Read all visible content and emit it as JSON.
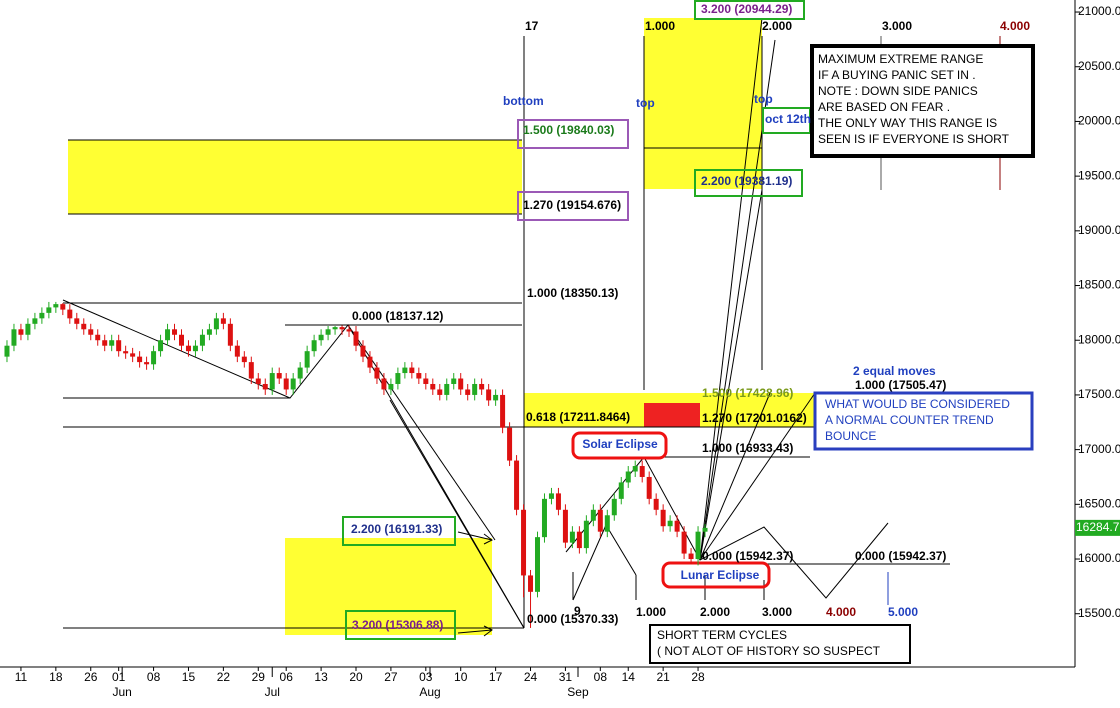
{
  "chart_data": {
    "type": "candlestick",
    "x": [
      0,
      1,
      2,
      3,
      4,
      5,
      6,
      7,
      8,
      9,
      10,
      11,
      12,
      13,
      14,
      15,
      16,
      17,
      18,
      19,
      20,
      21,
      22,
      23,
      24,
      25,
      26,
      27,
      28,
      29,
      30,
      31,
      32,
      33,
      34,
      35,
      36,
      37,
      38,
      39,
      40,
      41,
      42,
      43,
      44,
      45,
      46,
      47,
      48,
      49,
      50,
      51,
      52,
      53,
      54,
      55,
      56,
      57,
      58,
      59,
      60,
      61,
      62,
      63,
      64,
      65,
      66,
      67,
      68,
      69,
      70,
      71,
      72,
      73,
      74,
      75,
      76,
      77,
      78,
      79,
      80,
      81,
      82,
      83,
      84,
      85,
      86,
      87,
      88,
      89,
      90,
      91,
      92,
      93,
      94,
      95,
      96,
      97,
      98,
      99,
      100
    ],
    "open": [
      17850,
      17950,
      18100,
      18050,
      18150,
      18200,
      18250,
      18300,
      18330,
      18280,
      18200,
      18150,
      18100,
      18050,
      18000,
      17950,
      18000,
      17900,
      17880,
      17850,
      17800,
      17780,
      17900,
      18000,
      18100,
      18050,
      17950,
      17900,
      17950,
      18050,
      18100,
      18200,
      18150,
      17950,
      17850,
      17800,
      17650,
      17600,
      17550,
      17700,
      17650,
      17550,
      17650,
      17750,
      17900,
      18000,
      18050,
      18100,
      18120,
      18100,
      18080,
      17950,
      17850,
      17750,
      17650,
      17550,
      17600,
      17700,
      17750,
      17700,
      17650,
      17600,
      17550,
      17500,
      17600,
      17650,
      17550,
      17500,
      17600,
      17550,
      17450,
      17500,
      17200,
      16900,
      16450,
      15850,
      15700,
      16200,
      16550,
      16600,
      16450,
      16150,
      16250,
      16100,
      16350,
      16450,
      16250,
      16400,
      16550,
      16700,
      16800,
      16850,
      16750,
      16550,
      16450,
      16300,
      16350,
      16250,
      16050,
      16000,
      16250
    ],
    "high": [
      18000,
      18150,
      18150,
      18200,
      18250,
      18300,
      18350,
      18350,
      18340,
      18330,
      18250,
      18200,
      18150,
      18100,
      18050,
      18050,
      18050,
      17950,
      17930,
      17900,
      17850,
      17950,
      18050,
      18150,
      18150,
      18100,
      18000,
      18000,
      18100,
      18150,
      18250,
      18250,
      18200,
      18000,
      17900,
      17850,
      17700,
      17650,
      17750,
      17750,
      17700,
      17700,
      17800,
      17950,
      18050,
      18100,
      18130,
      18130,
      18135,
      18137,
      18130,
      18000,
      17900,
      17800,
      17700,
      17650,
      17750,
      17800,
      17800,
      17750,
      17700,
      17650,
      17600,
      17650,
      17700,
      17700,
      17600,
      17650,
      17650,
      17600,
      17550,
      17550,
      17250,
      16950,
      16500,
      15900,
      16250,
      16600,
      16650,
      16650,
      16500,
      16300,
      16300,
      16400,
      16500,
      16500,
      16450,
      16600,
      16750,
      16850,
      16900,
      16900,
      16800,
      16600,
      16500,
      16400,
      16400,
      16300,
      16100,
      16300,
      16320
    ],
    "low": [
      17800,
      17900,
      18000,
      18000,
      18100,
      18150,
      18200,
      18250,
      18230,
      18150,
      18100,
      18050,
      18000,
      17950,
      17900,
      17900,
      17850,
      17830,
      17800,
      17750,
      17730,
      17730,
      17850,
      17950,
      18000,
      17900,
      17850,
      17850,
      17900,
      18000,
      18050,
      18100,
      17900,
      17800,
      17750,
      17600,
      17550,
      17500,
      17500,
      17600,
      17500,
      17500,
      17600,
      17700,
      17850,
      17950,
      18000,
      18050,
      18050,
      18030,
      17900,
      17800,
      17700,
      17600,
      17500,
      17500,
      17550,
      17650,
      17650,
      17600,
      17550,
      17500,
      17450,
      17450,
      17550,
      17500,
      17450,
      17450,
      17500,
      17400,
      17400,
      17150,
      16850,
      16400,
      15650,
      15370,
      15650,
      16150,
      16500,
      16400,
      16100,
      16100,
      16050,
      16050,
      16300,
      16200,
      16200,
      16350,
      16500,
      16650,
      16750,
      16700,
      16500,
      16400,
      16250,
      16250,
      16200,
      16000,
      15950,
      15942,
      16200
    ],
    "close": [
      17950,
      18100,
      18050,
      18150,
      18200,
      18250,
      18300,
      18330,
      18280,
      18200,
      18150,
      18100,
      18050,
      18000,
      17950,
      18000,
      17900,
      17880,
      17850,
      17800,
      17780,
      17900,
      18000,
      18100,
      18050,
      17950,
      17900,
      17950,
      18050,
      18100,
      18200,
      18150,
      17950,
      17850,
      17800,
      17650,
      17600,
      17550,
      17700,
      17650,
      17550,
      17650,
      17750,
      17900,
      18000,
      18050,
      18100,
      18120,
      18100,
      18080,
      17950,
      17850,
      17750,
      17650,
      17550,
      17600,
      17700,
      17750,
      17700,
      17650,
      17600,
      17550,
      17500,
      17600,
      17650,
      17550,
      17500,
      17600,
      17550,
      17450,
      17500,
      17200,
      16900,
      16450,
      15850,
      15700,
      16200,
      16550,
      16600,
      16450,
      16150,
      16250,
      16100,
      16350,
      16450,
      16250,
      16400,
      16550,
      16700,
      16800,
      16850,
      16750,
      16550,
      16450,
      16300,
      16350,
      16250,
      16050,
      16000,
      16250,
      16285
    ],
    "up_color": "#22aa22",
    "down_color": "#dd1111",
    "xlim": [
      -1,
      153
    ],
    "ylim": [
      15013,
      21110
    ],
    "xticks": [
      {
        "value": 2,
        "label": "11"
      },
      {
        "value": 7,
        "label": "18"
      },
      {
        "value": 12,
        "label": "26"
      },
      {
        "value": 16,
        "label": "01"
      },
      {
        "value": 21,
        "label": "08"
      },
      {
        "value": 26,
        "label": "15"
      },
      {
        "value": 31,
        "label": "22"
      },
      {
        "value": 36,
        "label": "29"
      },
      {
        "value": 40,
        "label": "06"
      },
      {
        "value": 45,
        "label": "13"
      },
      {
        "value": 50,
        "label": "20"
      },
      {
        "value": 55,
        "label": "27"
      },
      {
        "value": 60,
        "label": "03"
      },
      {
        "value": 65,
        "label": "10"
      },
      {
        "value": 70,
        "label": "17"
      },
      {
        "value": 75,
        "label": "24"
      },
      {
        "value": 80,
        "label": "31"
      },
      {
        "value": 85,
        "label": "08"
      },
      {
        "value": 89,
        "label": "14"
      },
      {
        "value": 94,
        "label": "21"
      },
      {
        "value": 99,
        "label": "28"
      }
    ],
    "month_ticks": [
      {
        "value": 16.5,
        "label": "Jun"
      },
      {
        "value": 38,
        "label": "Jul"
      },
      {
        "value": 60.6,
        "label": "Aug"
      },
      {
        "value": 81.8,
        "label": "Sep"
      }
    ],
    "yticks": [
      {
        "value": 21000,
        "label": "21000.00"
      },
      {
        "value": 20500,
        "label": "20500.00"
      },
      {
        "value": 20000,
        "label": "20000.00"
      },
      {
        "value": 19500,
        "label": "19500.00"
      },
      {
        "value": 19000,
        "label": "19000.00"
      },
      {
        "value": 18500,
        "label": "18500.00"
      },
      {
        "value": 18000,
        "label": "18000.00"
      },
      {
        "value": 17500,
        "label": "17500.00"
      },
      {
        "value": 17000,
        "label": "17000.00"
      },
      {
        "value": 16500,
        "label": "16500.00"
      },
      {
        "value": 16000,
        "label": "16000.00"
      },
      {
        "value": 15500,
        "label": "15500.00"
      }
    ],
    "last_value": 16284.7,
    "annotations": [
      {
        "text": "17",
        "color": "#000000"
      },
      {
        "text": "1.000",
        "color": "#000000"
      },
      {
        "text": "3.200 (20944.29)",
        "color": "#7a1f8c"
      },
      {
        "text": "2.000",
        "color": "#000000"
      },
      {
        "text": "3.000",
        "color": "#000000"
      },
      {
        "text": "4.000",
        "color": "#8b0000"
      },
      {
        "text": "bottom",
        "color": "#1f3fbf"
      },
      {
        "text": "top",
        "color": "#1f3fbf"
      },
      {
        "text": "top",
        "color": "#1f3fbf"
      },
      {
        "text": "oct 12th",
        "color": "#1f3fbf"
      },
      {
        "text": "1.500 (19840.03)",
        "color": "#1a7a1a"
      },
      {
        "text": "2.200 (19381.19)",
        "color": "#1f2f8c"
      },
      {
        "text": "1.270 (19154.676)",
        "color": "#000000"
      },
      {
        "text": "1.000 (18350.13)",
        "color": "#000000"
      },
      {
        "text": "0.000 (18137.12)",
        "color": "#000000"
      },
      {
        "text": "2 equal moves",
        "color": "#1f3fbf"
      },
      {
        "text": "1.500 (17428.96)",
        "color": "#7a9a1a"
      },
      {
        "text": "1.000 (17505.47)",
        "color": "#000000"
      },
      {
        "text": "0.618 (17211.8464)",
        "color": "#000000"
      },
      {
        "text": "1.270 (17201.0162)",
        "color": "#000000"
      },
      {
        "text": "1.000 (16933.43)",
        "color": "#000000"
      },
      {
        "text": "Solar Eclipse",
        "color": "#1f3fbf"
      },
      {
        "text": "2.200 (16191.33)",
        "color": "#1f2f8c"
      },
      {
        "text": "0.000 (15942.37)",
        "color": "#000000"
      },
      {
        "text": "0.000 (15942.37)",
        "color": "#000000"
      },
      {
        "text": "Lunar Eclipse",
        "color": "#1f3fbf"
      },
      {
        "text": "3.200 (15306.88)",
        "color": "#7a1f8c"
      },
      {
        "text": "0.000 (15370.33)",
        "color": "#000000"
      },
      {
        "text": "9",
        "color": "#000000"
      },
      {
        "text": "1.000",
        "color": "#000000"
      },
      {
        "text": "2.000",
        "color": "#000000"
      },
      {
        "text": "3.000",
        "color": "#000000"
      },
      {
        "text": "4.000",
        "color": "#8b0000"
      },
      {
        "text": "5.000",
        "color": "#1f3fbf"
      }
    ],
    "max_range_note": [
      "MAXIMUM EXTREME RANGE",
      "IF A BUYING PANIC SET IN .",
      "NOTE : DOWN SIDE PANICS",
      "ARE BASED ON FEAR .",
      "THE ONLY WAY THIS RANGE IS",
      "SEEN IS IF EVERYONE IS SHORT"
    ],
    "bounce_note": [
      "WHAT WOULD BE CONSIDERED",
      "A NORMAL COUNTER TREND",
      "BOUNCE"
    ],
    "cycles_note": [
      "SHORT TERM CYCLES",
      "( NOT ALOT OF HISTORY SO SUSPECT"
    ]
  }
}
